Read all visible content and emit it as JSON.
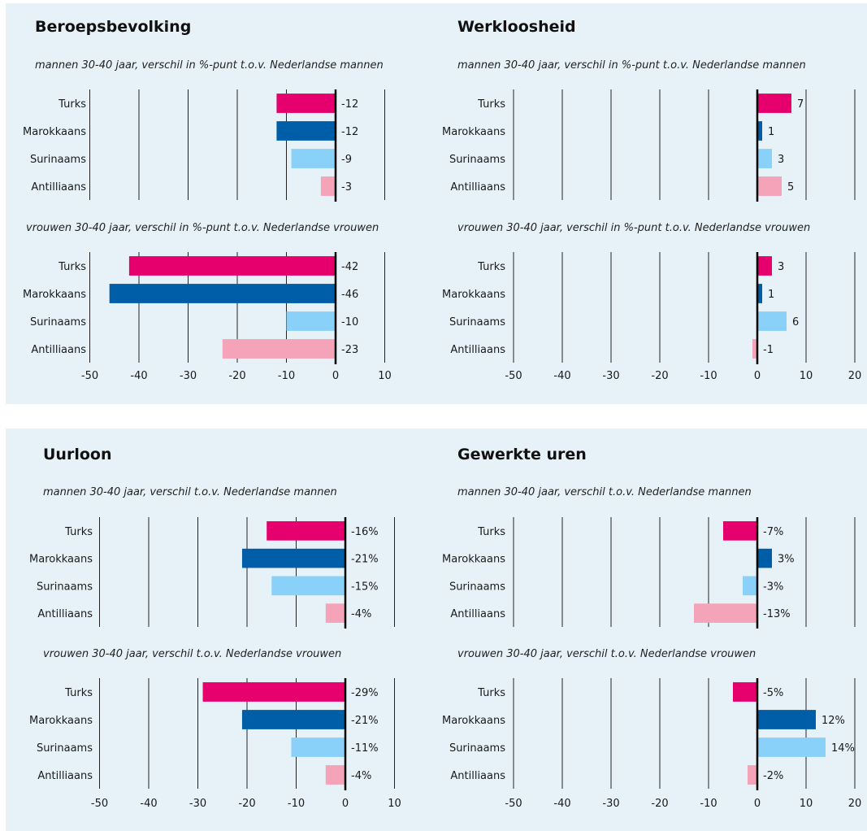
{
  "colors": {
    "turks": "#e5006d",
    "marokkaans": "#005ea9",
    "surinaams": "#89d1f9",
    "antilliaans": "#f4a3b8",
    "background": "#e6f1f8"
  },
  "chart_data": [
    {
      "type": "bar",
      "title": "Beroepsbevolking",
      "xlim": [
        -50,
        10
      ],
      "xticks": [
        "-50",
        "-40",
        "-30",
        "-20",
        "-10",
        "0",
        "10"
      ],
      "groups": [
        {
          "subtitle": "mannen 30-40 jaar, verschil in %-punt t.o.v. Nederlandse mannen",
          "categories": [
            "Turks",
            "Marokkaans",
            "Surinaams",
            "Antilliaans"
          ],
          "values": [
            -12,
            -12,
            -9,
            -3
          ],
          "labels": [
            "-12",
            "-12",
            "-9",
            "-3"
          ]
        },
        {
          "subtitle": "vrouwen 30-40 jaar, verschil in %-punt t.o.v. Nederlandse vrouwen",
          "categories": [
            "Turks",
            "Marokkaans",
            "Surinaams",
            "Antilliaans"
          ],
          "values": [
            -42,
            -46,
            -10,
            -23
          ],
          "labels": [
            "-42",
            "-46",
            "-10",
            "-23"
          ]
        }
      ]
    },
    {
      "type": "bar",
      "title": "Werkloosheid",
      "xlim": [
        -50,
        20
      ],
      "xticks": [
        "-50",
        "-40",
        "-30",
        "-20",
        "-10",
        "0",
        "10",
        "20"
      ],
      "groups": [
        {
          "subtitle": "mannen 30-40 jaar, verschil in %-punt t.o.v. Nederlandse mannen",
          "categories": [
            "Turks",
            "Marokkaans",
            "Surinaams",
            "Antilliaans"
          ],
          "values": [
            7,
            1,
            3,
            5
          ],
          "labels": [
            "7",
            "1",
            "3",
            "5"
          ]
        },
        {
          "subtitle": "vrouwen 30-40 jaar, verschil in %-punt t.o.v. Nederlandse vrouwen",
          "categories": [
            "Turks",
            "Marokkaans",
            "Surinaams",
            "Antilliaans"
          ],
          "values": [
            3,
            1,
            6,
            -1
          ],
          "labels": [
            "3",
            "1",
            "6",
            "-1"
          ]
        }
      ]
    },
    {
      "type": "bar",
      "title": "Uurloon",
      "xlim": [
        -50,
        10
      ],
      "xticks": [
        "-50",
        "-40",
        "-30",
        "-20",
        "-10",
        "0",
        "10"
      ],
      "groups": [
        {
          "subtitle": "mannen 30-40 jaar, verschil t.o.v. Nederlandse mannen",
          "categories": [
            "Turks",
            "Marokkaans",
            "Surinaams",
            "Antilliaans"
          ],
          "values": [
            -16,
            -21,
            -15,
            -4
          ],
          "labels": [
            "-16%",
            "-21%",
            "-15%",
            "-4%"
          ]
        },
        {
          "subtitle": "vrouwen 30-40 jaar, verschil t.o.v. Nederlandse vrouwen",
          "categories": [
            "Turks",
            "Marokkaans",
            "Surinaams",
            "Antilliaans"
          ],
          "values": [
            -29,
            -21,
            -11,
            -4
          ],
          "labels": [
            "-29%",
            "-21%",
            "-11%",
            "-4%"
          ]
        }
      ]
    },
    {
      "type": "bar",
      "title": "Gewerkte uren",
      "xlim": [
        -50,
        20
      ],
      "xticks": [
        "-50",
        "-40",
        "-30",
        "-20",
        "-10",
        "0",
        "10",
        "20"
      ],
      "groups": [
        {
          "subtitle": "mannen 30-40 jaar, verschil t.o.v. Nederlandse mannen",
          "categories": [
            "Turks",
            "Marokkaans",
            "Surinaams",
            "Antilliaans"
          ],
          "values": [
            -7,
            3,
            -3,
            -13
          ],
          "labels": [
            "-7%",
            "3%",
            "-3%",
            "-13%"
          ]
        },
        {
          "subtitle": "vrouwen 30-40 jaar, verschil t.o.v. Nederlandse vrouwen",
          "categories": [
            "Turks",
            "Marokkaans",
            "Surinaams",
            "Antilliaans"
          ],
          "values": [
            -5,
            12,
            14,
            -2
          ],
          "labels": [
            "-5%",
            "12%",
            "14%",
            "-2%"
          ]
        }
      ]
    }
  ]
}
